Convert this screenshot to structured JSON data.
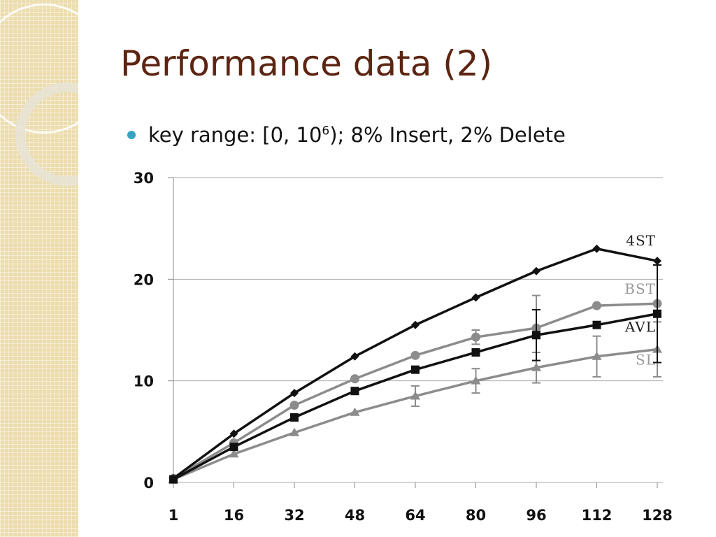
{
  "slide": {
    "title": "Performance data (2)",
    "bullet": {
      "before": "key range: [0, 10",
      "superscript": "6",
      "after": "); 8% Insert, 2% Delete"
    }
  },
  "colors": {
    "title": "#5c2512",
    "bullet": "#36a3c2",
    "sidebar": "#ecdcae"
  },
  "chart_data": {
    "type": "line",
    "title": "",
    "xlabel": "",
    "ylabel": "",
    "x": [
      1,
      16,
      32,
      48,
      64,
      80,
      96,
      112,
      128
    ],
    "x_tick_labels": [
      "1",
      "16",
      "32",
      "48",
      "64",
      "80",
      "96",
      "112",
      "128"
    ],
    "y_tick_labels": [
      "0",
      "10",
      "20",
      "30"
    ],
    "ylim": [
      0,
      30
    ],
    "grid": true,
    "legend": "labels at line ends (right)",
    "series": [
      {
        "name": "4ST",
        "color": "#111111",
        "marker": "diamond",
        "values": [
          0.4,
          4.8,
          8.8,
          12.4,
          15.5,
          18.2,
          20.8,
          23.0,
          21.8
        ]
      },
      {
        "name": "BST",
        "color": "#8c8c8c",
        "marker": "circle",
        "values": [
          0.4,
          3.9,
          7.6,
          10.2,
          12.5,
          14.3,
          15.2,
          17.4,
          17.6
        ],
        "error": [
          0,
          0,
          0,
          0,
          0,
          0.7,
          3.2,
          0,
          0
        ]
      },
      {
        "name": "AVL",
        "color": "#111111",
        "marker": "square",
        "values": [
          0.3,
          3.5,
          6.4,
          9.0,
          11.1,
          12.8,
          14.5,
          15.5,
          16.6
        ],
        "error": [
          0,
          0,
          0,
          0,
          0,
          0,
          2.5,
          0,
          4.8
        ]
      },
      {
        "name": "SL",
        "color": "#8c8c8c",
        "marker": "triangle",
        "values": [
          0.3,
          2.8,
          4.9,
          6.9,
          8.5,
          10.0,
          11.3,
          12.4,
          13.1
        ],
        "error": [
          0,
          0,
          0,
          0,
          1.0,
          1.2,
          1.5,
          2.0,
          2.7
        ]
      }
    ]
  }
}
